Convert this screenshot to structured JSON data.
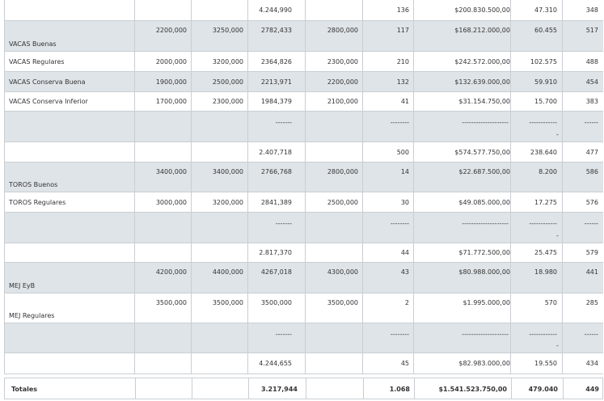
{
  "rows": [
    {
      "label": "",
      "c1": "",
      "c2": "",
      "c3": "4.244,990",
      "c4": "",
      "c5": "136",
      "c6": "$200.830.500,00",
      "c7": "47.310",
      "c8": "348"
    },
    {
      "label": "VACAS Buenas",
      "c1": "2200,000",
      "c2": "3250,000",
      "c3": "2782,433",
      "c4": "2800,000",
      "c5": "117",
      "c6": "$168.212.000,00",
      "c7": "60.455",
      "c8": "517"
    },
    {
      "label": "VACAS Regulares",
      "c1": "2000,000",
      "c2": "3200,000",
      "c3": "2364,826",
      "c4": "2300,000",
      "c5": "210",
      "c6": "$242.572.000,00",
      "c7": "102.575",
      "c8": "488"
    },
    {
      "label": "VACAS Conserva Buena",
      "c1": "1900,000",
      "c2": "2500,000",
      "c3": "2213,971",
      "c4": "2200,000",
      "c5": "132",
      "c6": "$132.639.000,00",
      "c7": "59.910",
      "c8": "454"
    },
    {
      "label": "VACAS Conserva Inferior",
      "c1": "1700,000",
      "c2": "2300,000",
      "c3": "1984,379",
      "c4": "2100,000",
      "c5": "41",
      "c6": "$31.154.750,00",
      "c7": "15.700",
      "c8": "383"
    },
    {
      "label": "",
      "c1": "",
      "c2": "",
      "c3": "-------",
      "c4": "",
      "c5": "--------",
      "c6": "--------------------",
      "c7": "------------",
      "c7b": "-",
      "c8": "------"
    },
    {
      "label": "",
      "c1": "",
      "c2": "",
      "c3": "2.407,718",
      "c4": "",
      "c5": "500",
      "c6": "$574.577.750,00",
      "c7": "238.640",
      "c8": "477"
    },
    {
      "label": "TOROS Buenos",
      "c1": "3400,000",
      "c2": "3400,000",
      "c3": "2766,768",
      "c4": "2800,000",
      "c5": "14",
      "c6": "$22.687.500,00",
      "c7": "8.200",
      "c8": "586"
    },
    {
      "label": "TOROS Regulares",
      "c1": "3000,000",
      "c2": "3200,000",
      "c3": "2841,389",
      "c4": "2500,000",
      "c5": "30",
      "c6": "$49.085.000,00",
      "c7": "17.275",
      "c8": "576"
    },
    {
      "label": "",
      "c1": "",
      "c2": "",
      "c3": "-------",
      "c4": "",
      "c5": "--------",
      "c6": "--------------------",
      "c7": "------------",
      "c7b": "-",
      "c8": "------"
    },
    {
      "label": "",
      "c1": "",
      "c2": "",
      "c3": "2.817,370",
      "c4": "",
      "c5": "44",
      "c6": "$71.772.500,00",
      "c7": "25.475",
      "c8": "579"
    },
    {
      "label": "MEJ EyB",
      "c1": "4200,000",
      "c2": "4400,000",
      "c3": "4267,018",
      "c4": "4300,000",
      "c5": "43",
      "c6": "$80.988.000,00",
      "c7": "18.980",
      "c8": "441"
    },
    {
      "label": "MEJ Regulares",
      "c1": "3500,000",
      "c2": "3500,000",
      "c3": "3500,000",
      "c4": "3500,000",
      "c5": "2",
      "c6": "$1.995.000,00",
      "c7": "570",
      "c8": "285"
    },
    {
      "label": "",
      "c1": "",
      "c2": "",
      "c3": "-------",
      "c4": "",
      "c5": "--------",
      "c6": "--------------------",
      "c7": "------------",
      "c7b": "-",
      "c8": "------"
    },
    {
      "label": "",
      "c1": "",
      "c2": "",
      "c3": "4.244,655",
      "c4": "",
      "c5": "45",
      "c6": "$82.983.000,00",
      "c7": "19.550",
      "c8": "434"
    }
  ],
  "totals": {
    "label": "Totales",
    "c3": "3.217,944",
    "c5": "1.068",
    "c6": "$1.541.523.750,00",
    "c7": "479.040",
    "c8": "449"
  }
}
